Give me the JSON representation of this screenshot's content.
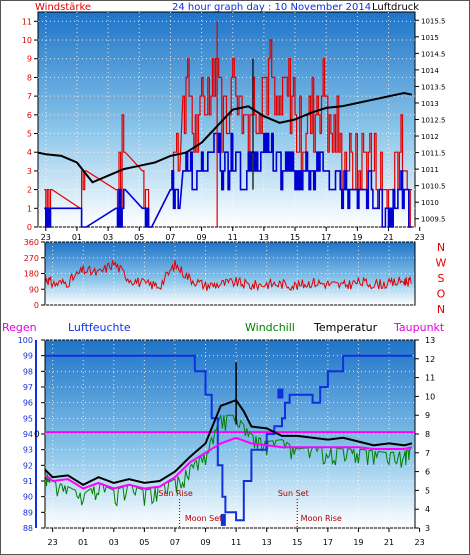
{
  "chart_data": [
    {
      "panel": "wind-pressure",
      "type": "line",
      "title": "24 hour graph day : 10 November 2014",
      "left_label": "Windstärke",
      "right_label": "Luftdruck",
      "x_ticks": [
        "23",
        "01",
        "03",
        "05",
        "07",
        "09",
        "11",
        "13",
        "15",
        "17",
        "19",
        "21",
        "23"
      ],
      "y_left_ticks": [
        0,
        1,
        2,
        3,
        4,
        5,
        6,
        7,
        8,
        9,
        10,
        11
      ],
      "y_left_lim": [
        0,
        11.5
      ],
      "y_right_ticks": [
        1009.5,
        1010,
        1010.5,
        1011,
        1011.5,
        1012,
        1012.5,
        1013,
        1013.5,
        1014,
        1014.5,
        1015,
        1015.5
      ],
      "y_right_lim": [
        1009.25,
        1015.75
      ],
      "series": [
        {
          "name": "Luftdruck",
          "color": "#000000",
          "x": [
            22.5,
            23,
            24,
            25,
            26,
            27,
            28,
            29,
            30,
            31,
            32,
            33,
            34,
            35,
            36,
            37,
            38,
            39,
            40,
            41,
            42,
            43,
            44,
            45,
            46,
            46.5
          ],
          "y": [
            1011.5,
            1011.45,
            1011.4,
            1011.2,
            1010.6,
            1010.8,
            1011.0,
            1011.1,
            1011.2,
            1011.4,
            1011.5,
            1011.8,
            1012.3,
            1012.8,
            1012.9,
            1012.6,
            1012.4,
            1012.5,
            1012.7,
            1012.85,
            1012.9,
            1013.0,
            1013.1,
            1013.2,
            1013.3,
            1013.25
          ]
        }
      ],
      "wind_gust_color": "#e00000",
      "wind_avg_color": "#0000d0"
    },
    {
      "panel": "wind-direction",
      "type": "line",
      "y_ticks": [
        0,
        90,
        180,
        270,
        360
      ],
      "y_lim": [
        0,
        360
      ],
      "direction_labels": [
        "N",
        "W",
        "S",
        "O",
        "N"
      ],
      "series": [
        {
          "name": "",
          "color": "#e00000",
          "x": [
            22.5,
            23,
            24,
            25,
            26,
            27,
            28,
            29,
            30,
            31,
            32,
            33,
            34,
            35,
            36,
            37,
            38,
            39,
            40,
            41,
            42,
            43,
            44,
            45,
            46,
            46.5
          ],
          "y": [
            160,
            120,
            130,
            200,
            180,
            240,
            150,
            120,
            110,
            230,
            150,
            110,
            120,
            130,
            110,
            120,
            120,
            110,
            130,
            120,
            110,
            130,
            120,
            120,
            140,
            130
          ]
        }
      ]
    },
    {
      "panel": "temperature-humidity",
      "type": "line",
      "top_labels": [
        "Regen",
        "Luftfeuchte",
        "Windchill",
        "Temperatur",
        "Taupunkt"
      ],
      "y_left_ticks": [
        88,
        89,
        90,
        91,
        92,
        93,
        94,
        95,
        96,
        97,
        98,
        99,
        100
      ],
      "y_left_lim": [
        88,
        100
      ],
      "y_right_ticks": [
        3,
        4,
        5,
        6,
        7,
        8,
        9,
        10,
        11,
        12,
        13
      ],
      "y_right_lim": [
        3,
        13
      ],
      "rain_marker": "0",
      "events": [
        {
          "label": "Sun Rise",
          "x": 31.3
        },
        {
          "label": "Moon Set",
          "x": 31.3
        },
        {
          "label": "Sun Set",
          "x": 39.0
        },
        {
          "label": "Moon Rise",
          "x": 39.0
        }
      ],
      "x_ticks": [
        "23",
        "01",
        "03",
        "05",
        "07",
        "09",
        "11",
        "13",
        "15",
        "17",
        "19",
        "21",
        "23"
      ],
      "series": [
        {
          "name": "Luftfeuchte",
          "color": "#1030e0",
          "x": [
            22.5,
            32,
            32.3,
            33,
            33.4,
            33.8,
            34.1,
            34.3,
            35,
            35.5,
            36,
            37,
            37.5,
            38,
            38.2,
            38.5,
            39,
            40,
            40.5,
            41,
            42,
            43,
            44,
            46.5
          ],
          "y": [
            99,
            99,
            98,
            96.5,
            95,
            92,
            90,
            89,
            88.5,
            91,
            93,
            94,
            94.5,
            95,
            96,
            96.5,
            96.5,
            96,
            97,
            98,
            99,
            99,
            99,
            99
          ]
        },
        {
          "name": "Temperatur",
          "color": "#000000",
          "x": [
            22.5,
            23,
            24,
            25,
            26,
            27,
            28,
            29,
            30,
            31,
            32,
            33,
            34,
            35,
            35.5,
            36,
            37,
            38,
            39,
            40,
            41,
            42,
            43,
            44,
            45,
            46,
            46.5
          ],
          "y": [
            6.1,
            5.7,
            5.8,
            5.3,
            5.7,
            5.4,
            5.6,
            5.4,
            5.5,
            6.0,
            6.8,
            7.5,
            9.5,
            9.8,
            9.2,
            8.4,
            8.3,
            7.9,
            7.9,
            7.8,
            7.7,
            7.8,
            7.6,
            7.4,
            7.5,
            7.4,
            7.5
          ]
        },
        {
          "name": "Taupunkt",
          "color": "#ff00ff",
          "x": [
            22.5,
            23,
            24,
            25,
            26,
            27,
            28,
            29,
            30,
            31,
            32,
            33,
            34,
            35,
            36,
            37,
            38,
            39,
            40,
            41,
            42,
            43,
            44,
            45,
            46,
            46.5
          ],
          "y": [
            5.8,
            5.5,
            5.6,
            5.1,
            5.4,
            5.1,
            5.3,
            5.1,
            5.2,
            5.7,
            6.5,
            7.0,
            7.5,
            7.8,
            7.5,
            7.4,
            7.3,
            7.3,
            7.3,
            7.3,
            7.3,
            7.3,
            7.2,
            7.2,
            7.2,
            7.3
          ]
        },
        {
          "name": "Windchill",
          "color": "#008000",
          "x": [
            22.5,
            23,
            24,
            25,
            26,
            27,
            28,
            29,
            30,
            31,
            32,
            33,
            34,
            35,
            36,
            37,
            38,
            39,
            40,
            41,
            42,
            43,
            44,
            45,
            46,
            46.5
          ],
          "y": [
            6.0,
            5.5,
            5.2,
            4.8,
            5.4,
            5.0,
            5.3,
            5.0,
            5.2,
            5.6,
            6.3,
            7.0,
            9.0,
            9.0,
            8.0,
            7.6,
            7.7,
            7.2,
            7.3,
            7.3,
            7.2,
            7.2,
            7.1,
            7.0,
            7.1,
            7.2
          ]
        }
      ],
      "taupunkt_ref": 8.1,
      "colors": {
        "regen": "#ff00ff",
        "luftfeuchte": "#1030e0",
        "windchill": "#008000",
        "temperatur": "#000000",
        "taupunkt": "#ff00ff"
      }
    }
  ]
}
